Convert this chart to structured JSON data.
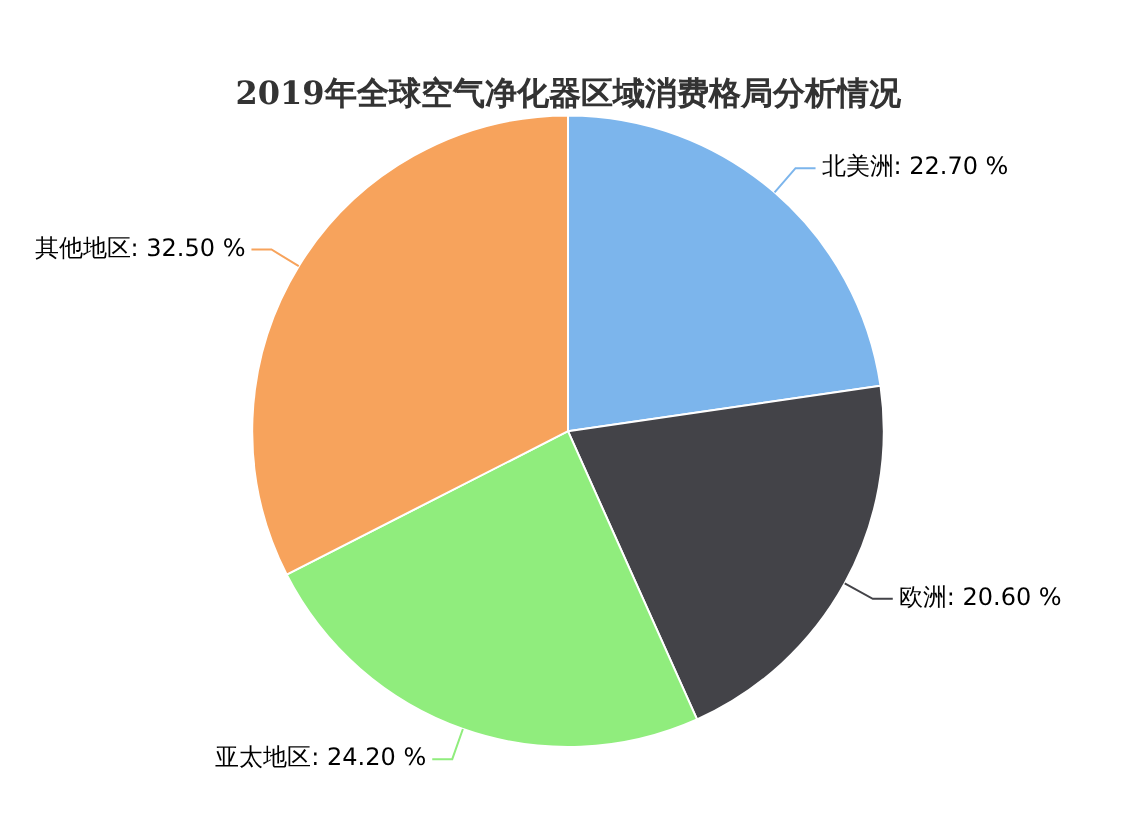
{
  "chart_data": {
    "type": "pie",
    "title": "2019年全球空气净化器区域消费格局分析情况",
    "categories": [
      "北美洲",
      "欧洲",
      "亚太地区",
      "其他地区"
    ],
    "values": [
      22.7,
      20.6,
      24.2,
      32.5
    ],
    "colors": [
      "#7cb5ec",
      "#434348",
      "#90ed7d",
      "#f7a35c"
    ],
    "value_labels": [
      "22.70 %",
      "20.60 %",
      "24.20 %",
      "32.50 %"
    ],
    "legend": false
  }
}
